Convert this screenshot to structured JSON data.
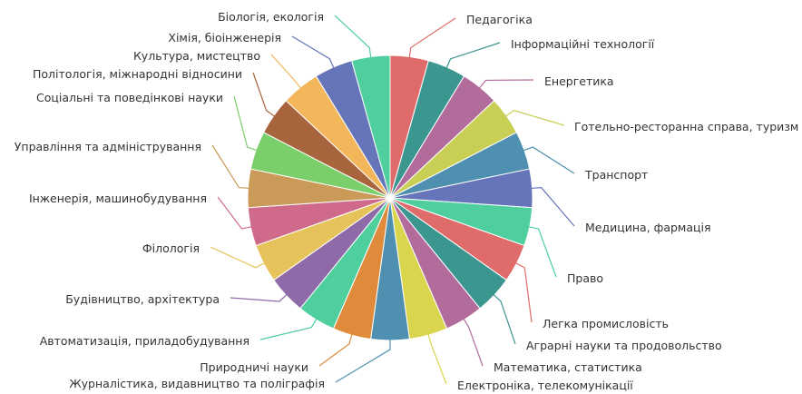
{
  "chart_data": {
    "type": "pie",
    "title": "",
    "slices": [
      {
        "label": "Педагогіка",
        "value": 1,
        "color": "#e06b6b"
      },
      {
        "label": "Інформаційні технології",
        "value": 1,
        "color": "#3c9690"
      },
      {
        "label": "Енергетика",
        "value": 1,
        "color": "#b16c9b"
      },
      {
        "label": "Готельно-ресторанна справа, туризм",
        "value": 1,
        "color": "#c9ce55"
      },
      {
        "label": "Транспорт",
        "value": 1,
        "color": "#4f90b0"
      },
      {
        "label": "Медицина, фармація",
        "value": 1,
        "color": "#6674ba"
      },
      {
        "label": "Право",
        "value": 1,
        "color": "#4fcf9e"
      },
      {
        "label": "Легка промисловість",
        "value": 1,
        "color": "#e06b6b"
      },
      {
        "label": "Аграрні науки та продовольство",
        "value": 1,
        "color": "#3c9690"
      },
      {
        "label": "Математика, статистика",
        "value": 1,
        "color": "#b16c9b"
      },
      {
        "label": "Електроніка, телекомунікації",
        "value": 1,
        "color": "#d9d64d"
      },
      {
        "label": "Журналістика, видавництво та поліграфія",
        "value": 1,
        "color": "#4f90b0"
      },
      {
        "label": "Природничі науки",
        "value": 1,
        "color": "#e08a3c"
      },
      {
        "label": "Автоматизація, приладобудування",
        "value": 1,
        "color": "#4fcf9e"
      },
      {
        "label": "Будівництво, архітектура",
        "value": 1,
        "color": "#8e6ba8"
      },
      {
        "label": "Філологія",
        "value": 1,
        "color": "#e6c35a"
      },
      {
        "label": "Інженерія, машинобудування",
        "value": 1,
        "color": "#d06a8a"
      },
      {
        "label": "Управління та адміністрування",
        "value": 1,
        "color": "#c99a58"
      },
      {
        "label": "Соціальні та поведінкові науки",
        "value": 1,
        "color": "#7bcf6b"
      },
      {
        "label": "Політологія, міжнародні відносини",
        "value": 1,
        "color": "#a8653d"
      },
      {
        "label": "Культура, мистецтво",
        "value": 1,
        "color": "#f3b65b"
      },
      {
        "label": "Хімія, біоінженерія",
        "value": 1,
        "color": "#6674ba"
      },
      {
        "label": "Біологія, екологія",
        "value": 1,
        "color": "#4fcf9e"
      }
    ],
    "legend": "none"
  }
}
